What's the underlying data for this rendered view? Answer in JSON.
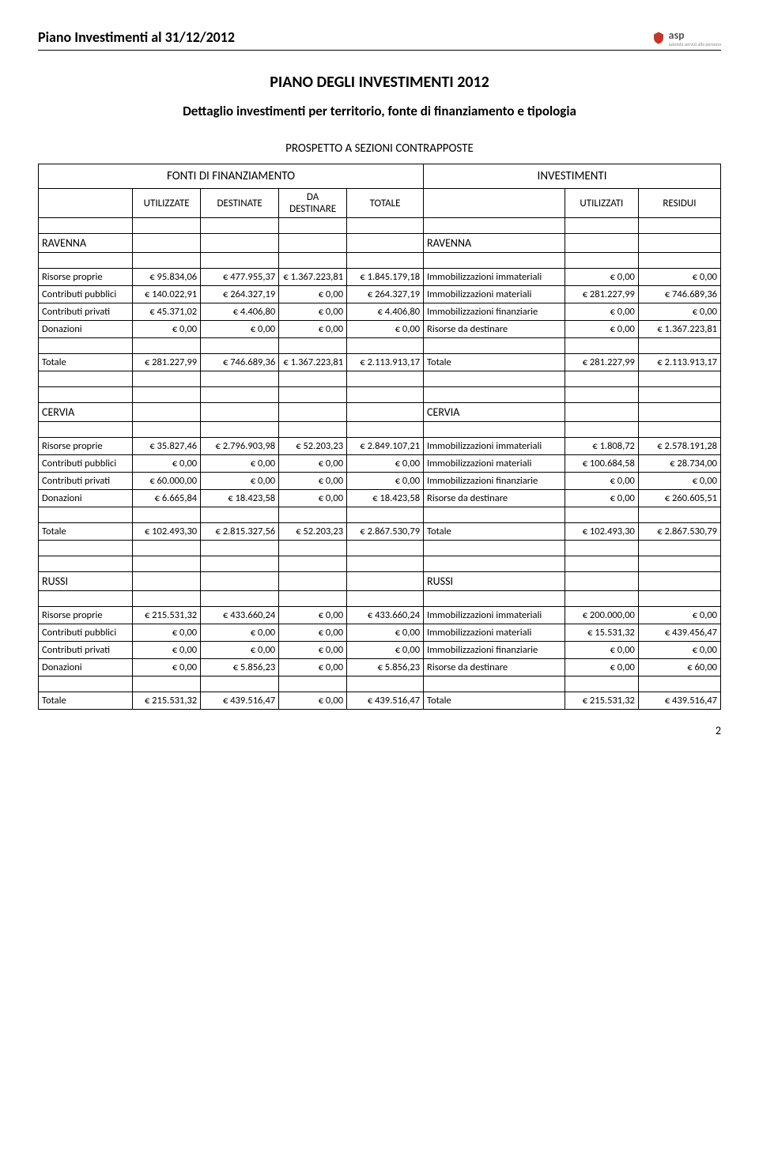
{
  "header": {
    "title": "Piano Investimenti al 31/12/2012",
    "logo_text": "asp",
    "logo_sub": "azienda servizi alla persona"
  },
  "titles": {
    "main": "PIANO DEGLI INVESTIMENTI 2012",
    "sub": "Dettaglio investimenti per territorio, fonte di finanziamento e tipologia",
    "prospetto": "PROSPETTO A SEZIONI CONTRAPPOSTE"
  },
  "fonti_header": {
    "left": "FONTI DI FINANZIAMENTO",
    "right": "INVESTIMENTI"
  },
  "col_headers": {
    "utilizzate": "UTILIZZATE",
    "destinate": "DESTINATE",
    "da_destinare": "DA DESTINARE",
    "totale": "TOTALE",
    "utilizzati": "UTILIZZATI",
    "residui": "RESIDUI"
  },
  "row_labels": {
    "risorse_proprie": "Risorse proprie",
    "contributi_pubblici": "Contributi pubblici",
    "contributi_privati": "Contributi privati",
    "donazioni": "Donazioni",
    "totale": "Totale",
    "imm_immateriali": "Immobilizzazioni immateriali",
    "imm_materiali": "Immobilizzazioni materiali",
    "imm_finanziarie": "Immobilizzazioni finanziarie",
    "risorse_da_destinare": "Risorse da destinare",
    "totale_r": "Totale"
  },
  "sections": [
    {
      "name_left": "RAVENNA",
      "name_right": "RAVENNA",
      "rows": [
        {
          "l": "risorse_proprie",
          "c2": "€ 95.834,06",
          "c3": "€ 477.955,37",
          "c4": "€ 1.367.223,81",
          "c5": "€ 1.845.179,18",
          "r": "imm_immateriali",
          "c7": "€ 0,00",
          "c8": "€ 0,00"
        },
        {
          "l": "contributi_pubblici",
          "c2": "€ 140.022,91",
          "c3": "€ 264.327,19",
          "c4": "€ 0,00",
          "c5": "€ 264.327,19",
          "r": "imm_materiali",
          "c7": "€ 281.227,99",
          "c8": "€ 746.689,36"
        },
        {
          "l": "contributi_privati",
          "c2": "€ 45.371,02",
          "c3": "€ 4.406,80",
          "c4": "€ 0,00",
          "c5": "€ 4.406,80",
          "r": "imm_finanziarie",
          "c7": "€ 0,00",
          "c8": "€ 0,00"
        },
        {
          "l": "donazioni",
          "c2": "€ 0,00",
          "c3": "€ 0,00",
          "c4": "€ 0,00",
          "c5": "€ 0,00",
          "r": "risorse_da_destinare",
          "c7": "€ 0,00",
          "c8": "€ 1.367.223,81"
        }
      ],
      "totale": {
        "c2": "€ 281.227,99",
        "c3": "€ 746.689,36",
        "c4": "€ 1.367.223,81",
        "c5": "€ 2.113.913,17",
        "c7": "€ 281.227,99",
        "c8": "€ 2.113.913,17"
      }
    },
    {
      "name_left": "CERVIA",
      "name_right": "CERVIA",
      "rows": [
        {
          "l": "risorse_proprie",
          "c2": "€ 35.827,46",
          "c3": "€ 2.796.903,98",
          "c4": "€ 52.203,23",
          "c5": "€ 2.849.107,21",
          "r": "imm_immateriali",
          "c7": "€ 1.808,72",
          "c8": "€ 2.578.191,28"
        },
        {
          "l": "contributi_pubblici",
          "c2": "€ 0,00",
          "c3": "€ 0,00",
          "c4": "€ 0,00",
          "c5": "€ 0,00",
          "r": "imm_materiali",
          "c7": "€ 100.684,58",
          "c8": "€ 28.734,00"
        },
        {
          "l": "contributi_privati",
          "c2": "€ 60.000,00",
          "c3": "€ 0,00",
          "c4": "€ 0,00",
          "c5": "€ 0,00",
          "r": "imm_finanziarie",
          "c7": "€ 0,00",
          "c8": "€ 0,00"
        },
        {
          "l": "donazioni",
          "c2": "€ 6.665,84",
          "c3": "€ 18.423,58",
          "c4": "€ 0,00",
          "c5": "€ 18.423,58",
          "r": "risorse_da_destinare",
          "c7": "€ 0,00",
          "c8": "€ 260.605,51"
        }
      ],
      "totale": {
        "c2": "€ 102.493,30",
        "c3": "€ 2.815.327,56",
        "c4": "€ 52.203,23",
        "c5": "€ 2.867.530,79",
        "c7": "€ 102.493,30",
        "c8": "€ 2.867.530,79"
      }
    },
    {
      "name_left": "RUSSI",
      "name_right": "RUSSI",
      "rows": [
        {
          "l": "risorse_proprie",
          "c2": "€ 215.531,32",
          "c3": "€ 433.660,24",
          "c4": "€ 0,00",
          "c5": "€ 433.660,24",
          "r": "imm_immateriali",
          "c7": "€ 200.000,00",
          "c8": "€ 0,00"
        },
        {
          "l": "contributi_pubblici",
          "c2": "€ 0,00",
          "c3": "€ 0,00",
          "c4": "€ 0,00",
          "c5": "€ 0,00",
          "r": "imm_materiali",
          "c7": "€ 15.531,32",
          "c8": "€ 439.456,47"
        },
        {
          "l": "contributi_privati",
          "c2": "€ 0,00",
          "c3": "€ 0,00",
          "c4": "€ 0,00",
          "c5": "€ 0,00",
          "r": "imm_finanziarie",
          "c7": "€ 0,00",
          "c8": "€ 0,00"
        },
        {
          "l": "donazioni",
          "c2": "€ 0,00",
          "c3": "€ 5.856,23",
          "c4": "€ 0,00",
          "c5": "€ 5.856,23",
          "r": "risorse_da_destinare",
          "c7": "€ 0,00",
          "c8": "€ 60,00"
        }
      ],
      "totale": {
        "c2": "€ 215.531,32",
        "c3": "€ 439.516,47",
        "c4": "€ 0,00",
        "c5": "€ 439.516,47",
        "c7": "€ 215.531,32",
        "c8": "€ 439.516,47"
      }
    }
  ],
  "page_number": "2"
}
